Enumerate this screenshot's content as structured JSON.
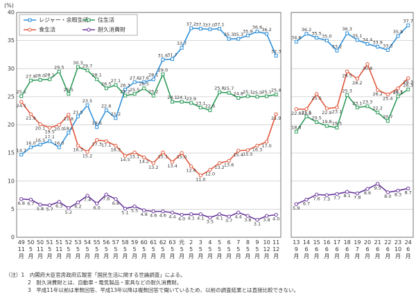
{
  "y_label": "(%)",
  "chart_data": [
    {
      "type": "line",
      "categories": [
        "49 11月",
        "50 5月",
        "50 11月",
        "51 5月",
        "51 11月",
        "52 5月",
        "53 5月",
        "54 5月",
        "55 5月",
        "56 5月",
        "57 5月",
        "58 5月",
        "59 5月",
        "60 5月",
        "61 5月",
        "62 5月",
        "63 5月",
        "元 5月",
        "2 5月",
        "3 5月",
        "4 5月",
        "5 5月",
        "6 5月",
        "7 5月",
        "8 5月",
        "9 5月",
        "10 12月",
        "11 12月"
      ],
      "ylim": [
        0,
        40
      ],
      "yticks": [
        0,
        5,
        10,
        15,
        20,
        25,
        30,
        35,
        40
      ],
      "grid": true,
      "legend": "upper left",
      "series": [
        {
          "name": "レジャー・余暇生活",
          "color": "#2f8fd8",
          "marker": "square",
          "values": [
            14.7,
            16.0,
            16.5,
            17.1,
            16.0,
            18.6,
            21.5,
            23.5,
            19.6,
            22.6,
            21.2,
            26.3,
            27.6,
            27.6,
            28.1,
            31.6,
            31.7,
            33.7,
            37.2,
            37.1,
            37.0,
            37.1,
            35.3,
            35.3,
            35.9,
            36.6,
            36.2,
            32.3
          ],
          "value_labels": [
            "14.7",
            "16.0",
            "16.5",
            "17.1",
            "16.0",
            "18.6",
            "21.5",
            "23.5",
            "19.6",
            "22.6",
            "21.2",
            "26.3",
            "27.6",
            "27.6",
            "28.1",
            "31.6",
            "31.7",
            "33.7",
            "37.2",
            "37.1",
            "37.0",
            "37.1",
            "35.3",
            "35.3",
            "35.9",
            "36.6",
            "36.2",
            "32.3"
          ]
        },
        {
          "name": "住生活",
          "color": "#2e9a5a",
          "marker": "square",
          "values": [
            25.1,
            27.9,
            28.0,
            28.1,
            29.5,
            25.5,
            30.3,
            29.7,
            28.1,
            26.5,
            27.1,
            25.2,
            25.5,
            26.5,
            25.2,
            29.0,
            24.1,
            24.1,
            23.9,
            23.1,
            22.6,
            25.8,
            25.7,
            24.8,
            25.1,
            25.0,
            25.1,
            25.4
          ],
          "value_labels": [
            "25.1",
            "27.9",
            "28.0",
            "28.1",
            "29.5",
            "25.5",
            "30.3",
            "29.7",
            "28.1",
            "26.5",
            "27.1",
            "25.2",
            "25.5",
            "26.5",
            "25.2",
            "29.0",
            "24.1",
            "24.1",
            "23.9",
            "23.1",
            "22.6",
            "25.8",
            "25.7",
            "24.8",
            "25.1",
            "25.0",
            "25.1",
            "25.4"
          ]
        },
        {
          "name": "食生活",
          "color": "#e0553a",
          "marker": "circle",
          "values": [
            24.1,
            21.9,
            20.1,
            19.5,
            20.0,
            21.8,
            16.3,
            15.2,
            17.3,
            17.1,
            16.3,
            14.5,
            15.1,
            14.2,
            13.2,
            15.1,
            13.4,
            15.0,
            12.6,
            11.0,
            12.0,
            13.2,
            13.6,
            15.4,
            15.5,
            16.3,
            17.0,
            21.9
          ],
          "value_labels": [
            "24.1",
            "21.9",
            "20.1",
            "19.5",
            "20.0",
            "21.8",
            "16.3",
            "15.2",
            "17.3",
            "17.1",
            "16.3",
            "14.5",
            "15.1",
            "14.2",
            "13.2",
            "15.1",
            "13.4",
            "15.0",
            "12.6",
            "11.0",
            "12.0",
            "13.2",
            "13.6",
            "15.4",
            "15.5",
            "16.3",
            "17.0",
            "21.9"
          ]
        },
        {
          "name": "耐久消費財",
          "color": "#663399",
          "marker": "circle",
          "values": [
            6.8,
            6.7,
            5.8,
            5.7,
            6.3,
            5.2,
            6.2,
            7.4,
            6.0,
            7.6,
            6.8,
            5.1,
            5.5,
            4.8,
            4.6,
            4.6,
            4.4,
            4.0,
            4.1,
            4.1,
            3.5,
            4.1,
            3.7,
            4.4,
            3.8,
            3.1,
            3.8,
            4.0
          ],
          "value_labels": [
            "6.8",
            "6.7",
            "5.8",
            "5.7",
            "6.3",
            "5.2",
            "6.2",
            "7.4",
            "6.0",
            "7.6",
            "6.8",
            "5.1",
            "5.5",
            "4.8",
            "4.6",
            "4.6",
            "4.4",
            "4.0",
            "4.1",
            "4.1",
            "3.5",
            "4.1",
            "3.7",
            "4.4",
            "3.8",
            "3.1",
            "3.8",
            "4.0"
          ]
        }
      ]
    },
    {
      "type": "line",
      "categories": [
        "13 9月",
        "14 6月",
        "15 6月",
        "16 6月",
        "17 6月",
        "18 6月",
        "19 7月",
        "20 6月",
        "21 6月",
        "22 6月",
        "23 10月",
        "24 6月"
      ],
      "ylim": [
        0,
        40
      ],
      "yticks": [
        0,
        5,
        10,
        15,
        20,
        25,
        30,
        35,
        40
      ],
      "grid": true,
      "series": [
        {
          "color": "#2f8fd8",
          "marker": "square",
          "values": [
            34.8,
            36.2,
            35.5,
            35.0,
            33.2,
            36.3,
            35.1,
            34.4,
            33.9,
            33.3,
            35.8,
            37.7
          ],
          "value_labels": [
            "34.8",
            "36.2",
            "35.5",
            "35.0",
            "33.2",
            "36.3",
            "35.1",
            "34.4",
            "33.9",
            "33.3",
            "35.8",
            "37.7"
          ]
        },
        {
          "color": "#2e9a5a",
          "marker": "square",
          "values": [
            18.8,
            21.5,
            20.5,
            19.8,
            19.5,
            25.3,
            23.1,
            23.3,
            22.2,
            20.7,
            25.1,
            26.3
          ],
          "value_labels": [
            "18.8",
            "21.5",
            "20.5",
            "19.8",
            "19.5",
            "25.3",
            "23.1",
            "23.3",
            "22.2",
            "20.7",
            "25.1",
            "26.3"
          ]
        },
        {
          "color": "#e0553a",
          "marker": "circle",
          "values": [
            22.8,
            22.8,
            25.5,
            22.9,
            23.1,
            29.5,
            28.2,
            30.8,
            26.2,
            25.4,
            26.5,
            28.3
          ],
          "value_labels": [
            "22.8",
            "22.8",
            "25.5",
            "22.9",
            "23.1",
            "29.5",
            "28.2",
            "30.8",
            "26.2",
            "25.4",
            "26.5",
            "28.3"
          ]
        },
        {
          "color": "#663399",
          "marker": "circle",
          "values": [
            5.9,
            6.7,
            7.6,
            7.5,
            7.7,
            8.1,
            7.8,
            8.6,
            9.5,
            8.0,
            8.3,
            8.7
          ],
          "value_labels": [
            "5.9",
            "6.7",
            "7.6",
            "7.5",
            "7.7",
            "8.1",
            "7.8",
            "8.6",
            "9.5",
            "8.0",
            "8.3",
            "8.7"
          ]
        }
      ]
    }
  ],
  "notes": [
    "（注）1　内閣府大臣官房政府広報室「国民生活に関する世論調査」による。",
    "2　耐久消費財とは、自動車・電気製品・家具などの耐久消費財。",
    "3　平成11年以前は単数回答、平成13年以降は複数回答で聞いているため、以前の調査結果とは直接比較できない。"
  ]
}
